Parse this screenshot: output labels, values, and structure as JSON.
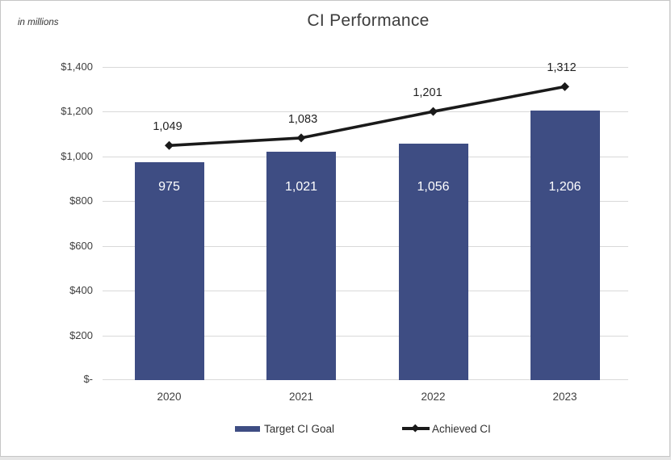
{
  "header": {
    "note": "in millions",
    "title": "CI Performance"
  },
  "colors": {
    "bar": "#3E4D83",
    "line": "#1A1A1A",
    "grid": "#D9D9D9"
  },
  "y_axis_labels": [
    "$1,400",
    "$1,200",
    "$1,000",
    "$800",
    "$600",
    "$400",
    "$200",
    "$-"
  ],
  "x_axis_labels": [
    "2020",
    "2021",
    "2022",
    "2023"
  ],
  "bar_value_labels": [
    "975",
    "1,021",
    "1,056",
    "1,206"
  ],
  "line_value_labels": [
    "1,049",
    "1,083",
    "1,201",
    "1,312"
  ],
  "legend": {
    "bar": "Target CI Goal",
    "line": "Achieved CI"
  },
  "chart_data": {
    "type": "bar",
    "categories": [
      "2020",
      "2021",
      "2022",
      "2023"
    ],
    "series": [
      {
        "name": "Target CI Goal",
        "type": "bar",
        "values": [
          975,
          1021,
          1056,
          1206
        ]
      },
      {
        "name": "Achieved CI",
        "type": "line",
        "values": [
          1049,
          1083,
          1201,
          1312
        ]
      }
    ],
    "title": "CI Performance",
    "units_note": "in millions",
    "xlabel": "",
    "ylabel": "",
    "ylim": [
      0,
      1400
    ],
    "ytick_step": 200,
    "ytick_prefix": "$",
    "zero_tick_label": "$-",
    "grid": "horizontal",
    "legend_position": "bottom",
    "value_labels": {
      "bar": "inside-white",
      "line": "above-black"
    }
  }
}
